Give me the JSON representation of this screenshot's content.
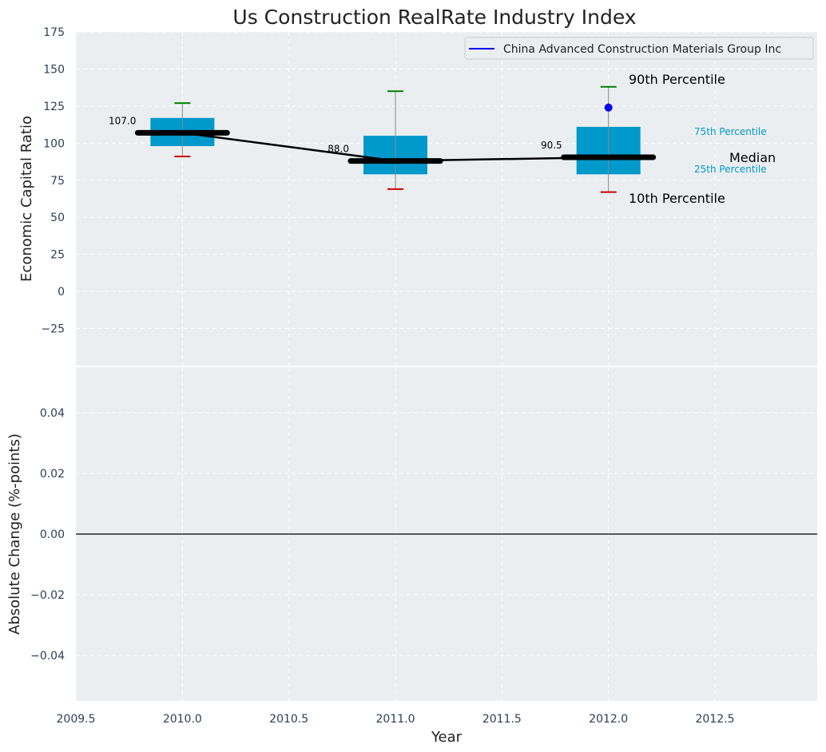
{
  "chart_data": [
    {
      "type": "box",
      "title": "Us Construction RealRate Industry Index",
      "ylabel": "Economic Capital Ratio",
      "ylim": [
        -50,
        175
      ],
      "xlim": [
        2009.5,
        2012.98
      ],
      "y_ticks": [
        "175",
        "150",
        "125",
        "100",
        "75",
        "50",
        "25",
        "0",
        "−25"
      ],
      "y_tick_values": [
        175,
        150,
        125,
        100,
        75,
        50,
        25,
        0,
        -25
      ],
      "grid": true,
      "legend": {
        "placement": "top-right",
        "entries": [
          "China Advanced Construction Materials Group Inc"
        ]
      },
      "colors": {
        "box": "#0099cc",
        "median": "#000000",
        "p90": "#008000",
        "p10": "#cc0000",
        "series": "#0000ee",
        "whisker": "#888888",
        "background": "#eaeef0"
      },
      "boxes": [
        {
          "x": 2010.0,
          "p10": 91,
          "p25": 98,
          "median": 107,
          "p75": 117,
          "p90": 127
        },
        {
          "x": 2011.0,
          "p10": 69,
          "p25": 79,
          "median": 88,
          "p75": 105,
          "p90": 135
        },
        {
          "x": 2012.0,
          "p10": 67,
          "p25": 79,
          "median": 90.5,
          "p75": 111,
          "p90": 138
        }
      ],
      "median_labels": [
        "107.0",
        "88.0",
        "90.5"
      ],
      "series": [
        {
          "name": "China Advanced Construction Materials Group Inc",
          "x": [
            2012.0
          ],
          "values": [
            124
          ]
        }
      ],
      "annotations": {
        "p90": "90th Percentile",
        "p75": "75th Percentile",
        "median": "Median",
        "p25": "25th Percentile",
        "p10": "10th Percentile"
      }
    },
    {
      "type": "line",
      "ylabel": "Absolute Change (%-points)",
      "xlabel": "Year",
      "ylim": [
        -0.055,
        0.055
      ],
      "y_ticks": [
        "0.04",
        "0.02",
        "0.00",
        "−0.02",
        "−0.04"
      ],
      "y_tick_values": [
        0.04,
        0.02,
        0.0,
        -0.02,
        -0.04
      ],
      "x_ticks": [
        "2009.5",
        "2010.0",
        "2010.5",
        "2011.0",
        "2011.5",
        "2012.0",
        "2012.5"
      ],
      "x_tick_values": [
        2009.5,
        2010.0,
        2010.5,
        2011.0,
        2011.5,
        2012.0,
        2012.5
      ],
      "grid": true,
      "reference_line": 0
    }
  ]
}
